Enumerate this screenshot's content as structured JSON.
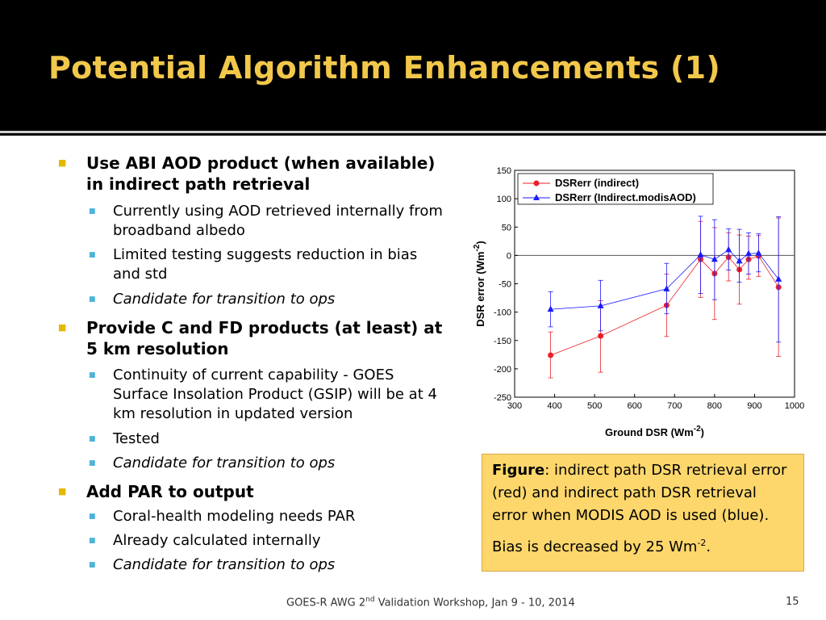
{
  "title": "Potential Algorithm Enhancements (1)",
  "bullets": {
    "b1": "Use ABI AOD product (when available) in indirect path retrieval",
    "b1_s1": "Currently using AOD retrieved internally from broadband albedo",
    "b1_s2": "Limited testing suggests reduction in bias and std",
    "b1_s3": "Candidate for transition to ops",
    "b2": "Provide C and FD products (at least) at 5 km resolution",
    "b2_s1": "Continuity of current capability - GOES Surface Insolation Product (GSIP) will be at 4 km resolution in updated version",
    "b2_s2": "Tested",
    "b2_s3": "Candidate for transition to ops",
    "b3": "Add PAR to output",
    "b3_s1": "Coral-health modeling needs PAR",
    "b3_s2": "Already calculated internally",
    "b3_s3": "Candidate for transition to ops"
  },
  "caption": {
    "label": "Figure",
    "text": ": indirect path DSR retrieval error (red) and indirect path DSR retrieval error when MODIS AOD is used (blue).",
    "bias_prefix": "Bias is decreased by 25 Wm",
    "bias_sup": "-2",
    "bias_suffix": "."
  },
  "footer": {
    "prefix": "GOES-R AWG 2",
    "sup": "nd",
    "suffix": " Validation Workshop, Jan 9 - 10, 2014"
  },
  "page_number": "15",
  "colors": {
    "title": "#f2c84b",
    "bullet_main": "#e5b800",
    "bullet_sub": "#4fb3d9",
    "caption_bg": "#fdd76c",
    "series_red": "#e8202a",
    "series_blue": "#1a1aff"
  },
  "chart_data": {
    "type": "scatter",
    "xlabel": "Ground DSR (Wm",
    "xlabel_sup": "-2",
    "xlabel_end": ")",
    "ylabel": "DSR error (Wm",
    "ylabel_sup": "-2",
    "ylabel_end": ")",
    "xlim": [
      300,
      1000
    ],
    "ylim": [
      -250,
      150
    ],
    "xticks": [
      300,
      400,
      500,
      600,
      700,
      800,
      900,
      1000
    ],
    "yticks": [
      -250,
      -200,
      -150,
      -100,
      -50,
      0,
      50,
      100,
      150
    ],
    "reference_line_y": 0,
    "legend_position": "top-left",
    "series": [
      {
        "name": "DSRerr (indirect)",
        "marker": "circle",
        "color": "#e8202a",
        "points": [
          {
            "x": 390,
            "y": -176,
            "lo": -216,
            "hi": -135
          },
          {
            "x": 515,
            "y": -142,
            "lo": -206,
            "hi": -80
          },
          {
            "x": 680,
            "y": -88,
            "lo": -143,
            "hi": -33
          },
          {
            "x": 765,
            "y": -7,
            "lo": -74,
            "hi": 60
          },
          {
            "x": 800,
            "y": -32,
            "lo": -113,
            "hi": 49
          },
          {
            "x": 835,
            "y": -3,
            "lo": -45,
            "hi": 40
          },
          {
            "x": 862,
            "y": -25,
            "lo": -86,
            "hi": 36
          },
          {
            "x": 885,
            "y": -7,
            "lo": -42,
            "hi": 34
          },
          {
            "x": 910,
            "y": -1,
            "lo": -37,
            "hi": 35
          },
          {
            "x": 960,
            "y": -56,
            "lo": -178,
            "hi": 66
          }
        ]
      },
      {
        "name": "DSRerr (Indirect.modisAOD)",
        "marker": "triangle",
        "color": "#1a1aff",
        "points": [
          {
            "x": 390,
            "y": -95,
            "lo": -126,
            "hi": -64
          },
          {
            "x": 515,
            "y": -89,
            "lo": -133,
            "hi": -44
          },
          {
            "x": 680,
            "y": -59,
            "lo": -103,
            "hi": -14
          },
          {
            "x": 765,
            "y": 1,
            "lo": -67,
            "hi": 69
          },
          {
            "x": 800,
            "y": -7,
            "lo": -78,
            "hi": 63
          },
          {
            "x": 835,
            "y": 10,
            "lo": -26,
            "hi": 47
          },
          {
            "x": 862,
            "y": -10,
            "lo": -47,
            "hi": 46
          },
          {
            "x": 885,
            "y": 3,
            "lo": -33,
            "hi": 40
          },
          {
            "x": 910,
            "y": 4,
            "lo": -29,
            "hi": 38
          },
          {
            "x": 960,
            "y": -42,
            "lo": -153,
            "hi": 68
          }
        ]
      }
    ]
  }
}
